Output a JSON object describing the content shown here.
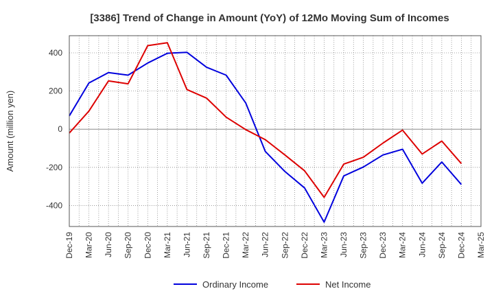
{
  "chart_data": {
    "type": "line",
    "title": "[3386]  Trend of Change in Amount (YoY) of 12Mo Moving Sum of Incomes",
    "xlabel": "",
    "ylabel": "Amount (million yen)",
    "ylim": [
      -510,
      490
    ],
    "yticks": [
      400,
      200,
      0,
      -200,
      -400
    ],
    "grid": true,
    "legend_position": "bottom",
    "categories": [
      "Dec-19",
      "Mar-20",
      "Jun-20",
      "Sep-20",
      "Dec-20",
      "Mar-21",
      "Jun-21",
      "Sep-21",
      "Dec-21",
      "Mar-22",
      "Jun-22",
      "Sep-22",
      "Dec-22",
      "Mar-23",
      "Jun-23",
      "Sep-23",
      "Dec-23",
      "Mar-24",
      "Jun-24",
      "Sep-24",
      "Dec-24",
      "Mar-25"
    ],
    "series": [
      {
        "name": "Ordinary Income",
        "color": "#0000dd",
        "values": [
          70,
          242,
          297,
          283,
          347,
          398,
          403,
          325,
          283,
          138,
          -117,
          -222,
          -308,
          -487,
          -245,
          -198,
          -135,
          -105,
          -283,
          -172,
          -290,
          null
        ]
      },
      {
        "name": "Net Income",
        "color": "#dd0000",
        "values": [
          -20,
          95,
          253,
          238,
          438,
          453,
          208,
          163,
          63,
          -2,
          -55,
          -135,
          -218,
          -357,
          -183,
          -147,
          -73,
          -5,
          -130,
          -62,
          -180,
          null
        ]
      }
    ]
  }
}
